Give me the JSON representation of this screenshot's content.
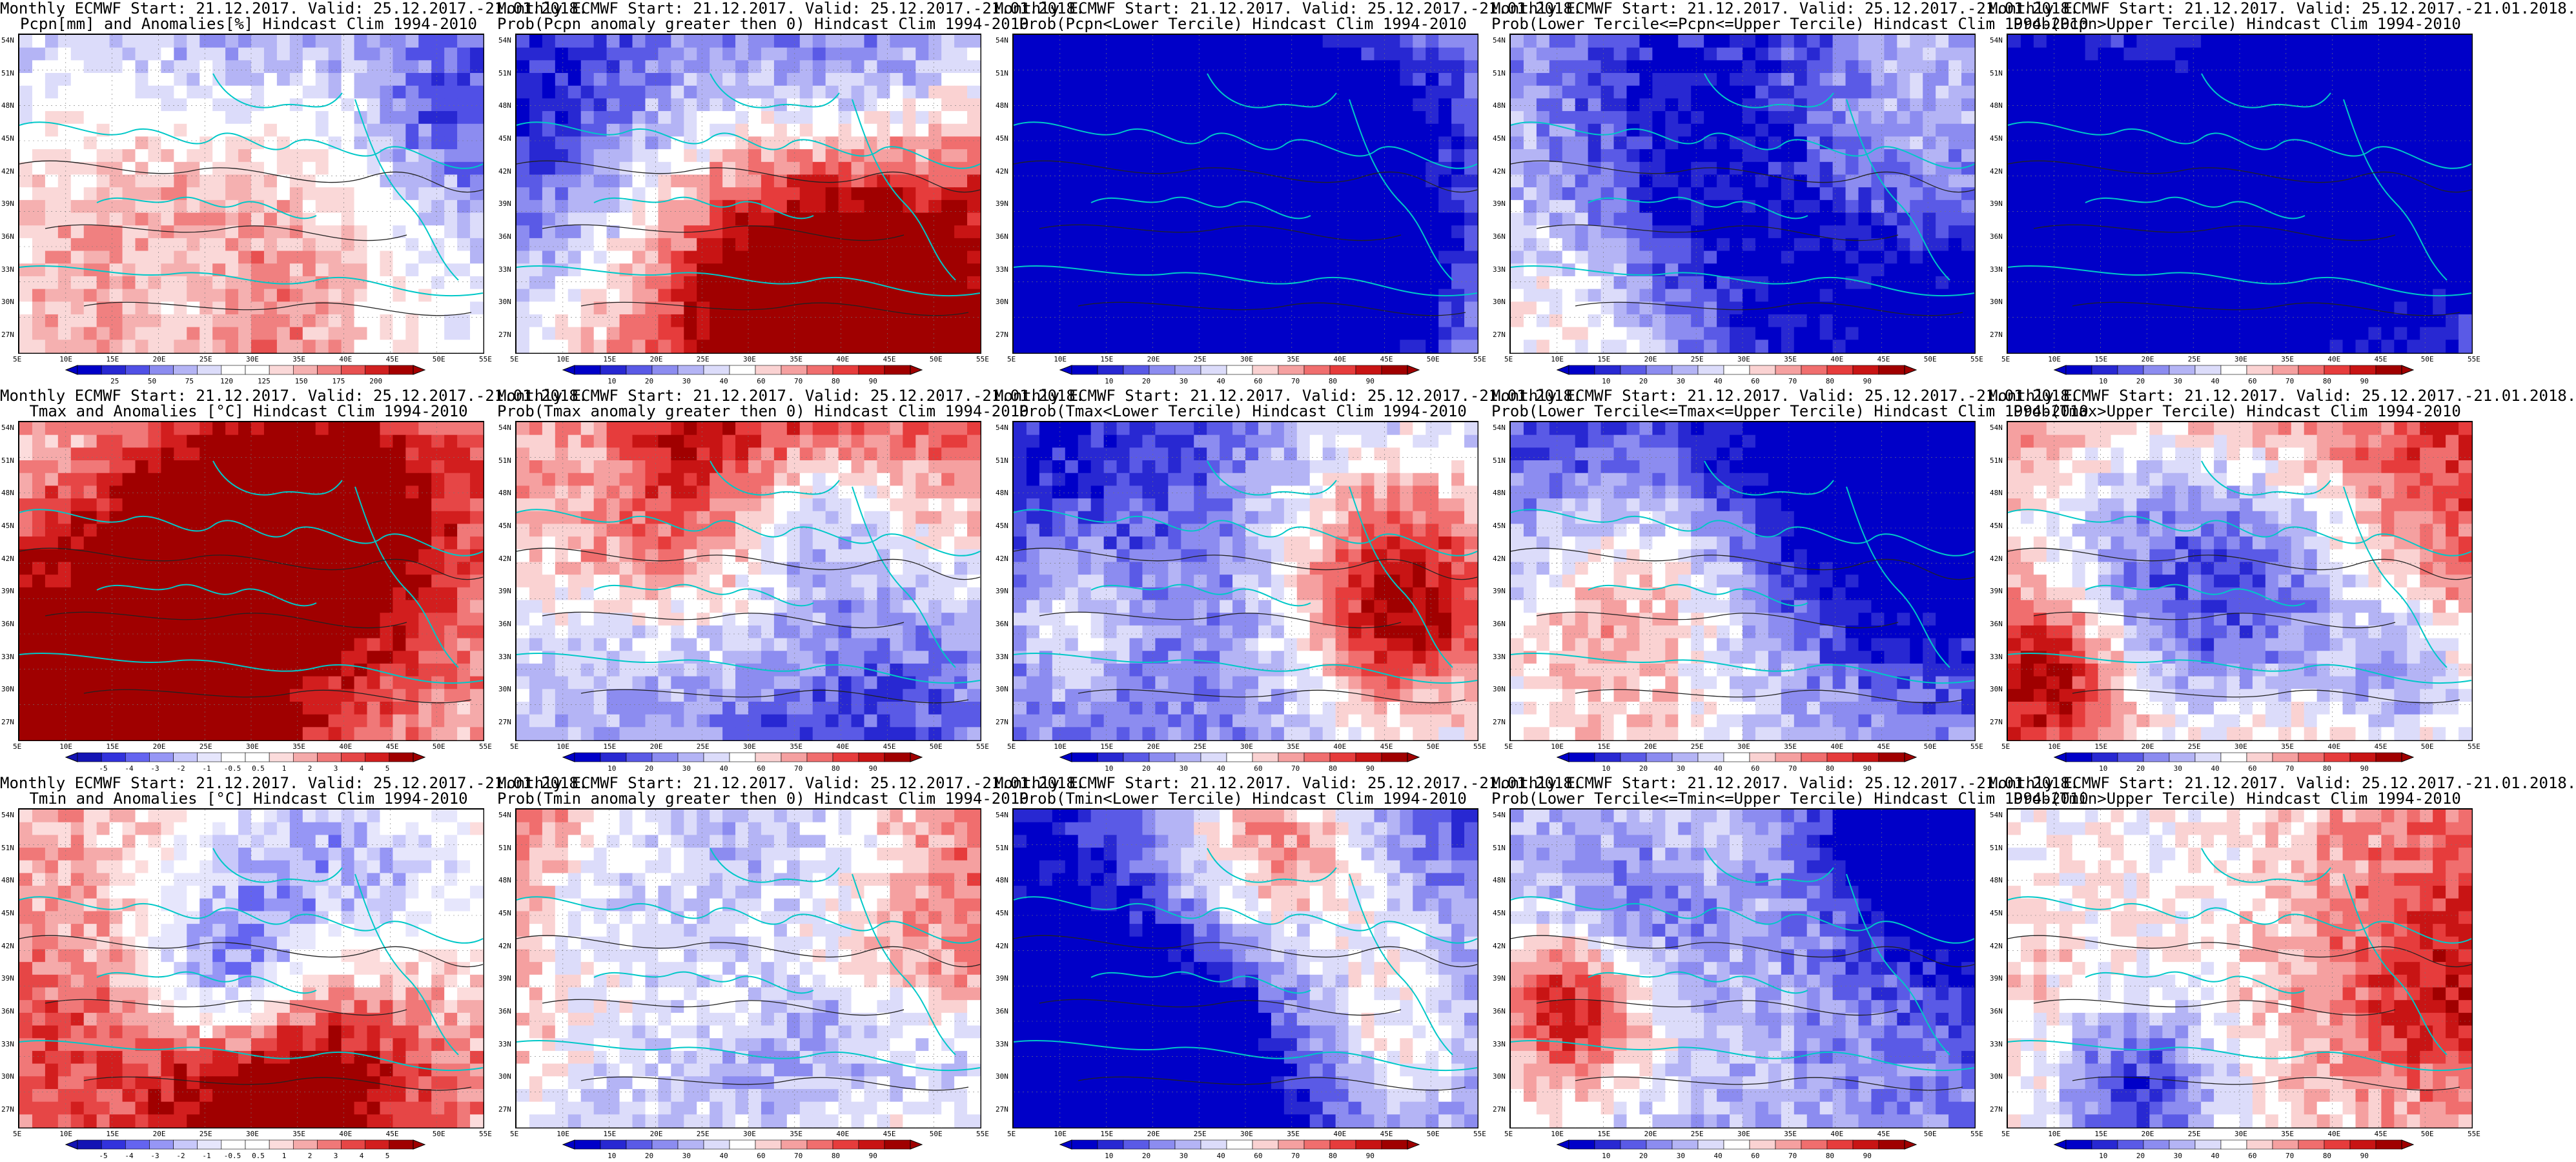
{
  "lat_labels": [
    "54N",
    "51N",
    "48N",
    "45N",
    "42N",
    "39N",
    "36N",
    "33N",
    "30N",
    "27N"
  ],
  "lon_labels": [
    "5E",
    "10E",
    "15E",
    "20E",
    "25E",
    "30E",
    "35E",
    "40E",
    "45E",
    "50E",
    "55E"
  ],
  "palettes": {
    "anom_prec": [
      "#a50000",
      "#d02020",
      "#e85050",
      "#f08080",
      "#f5b0b0",
      "#fad8d8",
      "#ffffff",
      "#ffffff",
      "#dcdcfa",
      "#b4b4f5",
      "#8c8cf0",
      "#5050e6",
      "#2828d2",
      "#0000c8"
    ],
    "anom_temp": [
      "#1414b4",
      "#3232dc",
      "#6464f0",
      "#9696f5",
      "#c8c8fa",
      "#e6e6fc",
      "#ffffff",
      "#ffffff",
      "#fcdcdc",
      "#f5aaaa",
      "#f07878",
      "#e64646",
      "#d21e1e",
      "#a00000"
    ],
    "prob": [
      "#0000c8",
      "#2828d2",
      "#5a5ae6",
      "#8c8cf0",
      "#b4b4f5",
      "#dcdcfa",
      "#ffffff",
      "#fad2d2",
      "#f5a0a0",
      "#f06e6e",
      "#e63c3c",
      "#c81414",
      "#a00000"
    ]
  },
  "panels": [
    {
      "line1": "Monthly ECMWF Start: 21.12.2017. Valid: 25.12.2017.-21.01.2018.",
      "line2": "Pcpn[mm] and Anomalies[%] Hindcast Clim 1994-2010",
      "palette": "anom_prec",
      "colorbar_labels": [
        "25",
        "50",
        "75",
        "120",
        "125",
        "150",
        "175",
        "200"
      ],
      "seed": 11,
      "bias": 0.35
    },
    {
      "line1": "Monthly ECMWF Start: 21.12.2017. Valid: 25.12.2017.-21.01.2018.",
      "line2": "Prob(Pcpn anomaly greater then 0) Hindcast Clim 1994-2010",
      "palette": "prob",
      "colorbar_labels": [
        "10",
        "20",
        "30",
        "40",
        "60",
        "70",
        "80",
        "90"
      ],
      "seed": 12,
      "bias": 0.45
    },
    {
      "line1": "Monthly ECMWF Start: 21.12.2017. Valid: 25.12.2017.-21.01.2018.",
      "line2": "Prob(Pcpn<Lower Tercile) Hindcast Clim 1994-2010",
      "palette": "prob",
      "colorbar_labels": [
        "10",
        "20",
        "30",
        "40",
        "60",
        "70",
        "80",
        "90"
      ],
      "seed": 13,
      "bias": 0.4
    },
    {
      "line1": "Monthly ECMWF Start: 21.12.2017. Valid: 25.12.2017.-21.01.2018.",
      "line2": "Prob(Lower Tercile<=Pcpn<=Upper Tercile) Hindcast Clim 1994-2010",
      "palette": "prob",
      "colorbar_labels": [
        "10",
        "20",
        "30",
        "40",
        "60",
        "70",
        "80",
        "90"
      ],
      "seed": 14,
      "bias": 0.42
    },
    {
      "line1": "Monthly ECMWF Start: 21.12.2017. Valid: 25.12.2017.-21.01.2018.",
      "line2": "Prob(Pcpn>Upper Tercile) Hindcast Clim 1994-2010",
      "palette": "prob",
      "colorbar_labels": [
        "10",
        "20",
        "30",
        "40",
        "60",
        "70",
        "80",
        "90"
      ],
      "seed": 15,
      "bias": 0.38
    },
    {
      "line1": "Monthly ECMWF Start: 21.12.2017. Valid: 25.12.2017.-21.01.2018.",
      "line2": "Tmax and Anomalies [°C] Hindcast Clim 1994-2010",
      "palette": "anom_temp",
      "colorbar_labels": [
        "-5",
        "-4",
        "-3",
        "-2",
        "-1",
        "-0.5",
        "0.5",
        "1",
        "2",
        "3",
        "4",
        "5"
      ],
      "seed": 21,
      "bias": 0.68
    },
    {
      "line1": "Monthly ECMWF Start: 21.12.2017. Valid: 25.12.2017.-21.01.2018.",
      "line2": "Prob(Tmax anomaly greater then 0) Hindcast Clim 1994-2010",
      "palette": "prob",
      "colorbar_labels": [
        "10",
        "20",
        "30",
        "40",
        "60",
        "70",
        "80",
        "90"
      ],
      "seed": 22,
      "bias": 0.75
    },
    {
      "line1": "Monthly ECMWF Start: 21.12.2017. Valid: 25.12.2017.-21.01.2018.",
      "line2": "Prob(Tmax<Lower Tercile) Hindcast Clim 1994-2010",
      "palette": "prob",
      "colorbar_labels": [
        "10",
        "20",
        "30",
        "40",
        "60",
        "70",
        "80",
        "90"
      ],
      "seed": 23,
      "bias": 0.1
    },
    {
      "line1": "Monthly ECMWF Start: 21.12.2017. Valid: 25.12.2017.-21.01.2018.",
      "line2": "Prob(Lower Tercile<=Tmax<=Upper Tercile) Hindcast Clim 1994-2010",
      "palette": "prob",
      "colorbar_labels": [
        "10",
        "20",
        "30",
        "40",
        "60",
        "70",
        "80",
        "90"
      ],
      "seed": 24,
      "bias": 0.2
    },
    {
      "line1": "Monthly ECMWF Start: 21.12.2017. Valid: 25.12.2017.-21.01.2018.",
      "line2": "Prob(Tmax>Upper Tercile) Hindcast Clim 1994-2010",
      "palette": "prob",
      "colorbar_labels": [
        "10",
        "20",
        "30",
        "40",
        "60",
        "70",
        "80",
        "90"
      ],
      "seed": 25,
      "bias": 0.72
    },
    {
      "line1": "Monthly ECMWF Start: 21.12.2017. Valid: 25.12.2017.-21.01.2018.",
      "line2": "Tmin and Anomalies [°C] Hindcast Clim 1994-2010",
      "palette": "anom_temp",
      "colorbar_labels": [
        "-5",
        "-4",
        "-3",
        "-2",
        "-1",
        "-0.5",
        "0.5",
        "1",
        "2",
        "3",
        "4",
        "5"
      ],
      "seed": 31,
      "bias": 0.66
    },
    {
      "line1": "Monthly ECMWF Start: 21.12.2017. Valid: 25.12.2017.-21.01.2018.",
      "line2": "Prob(Tmin anomaly greater then 0) Hindcast Clim 1994-2010",
      "palette": "prob",
      "colorbar_labels": [
        "10",
        "20",
        "30",
        "40",
        "60",
        "70",
        "80",
        "90"
      ],
      "seed": 32,
      "bias": 0.76
    },
    {
      "line1": "Monthly ECMWF Start: 21.12.2017. Valid: 25.12.2017.-21.01.2018.",
      "line2": "Prob(Tmin<Lower Tercile) Hindcast Clim 1994-2010",
      "palette": "prob",
      "colorbar_labels": [
        "10",
        "20",
        "30",
        "40",
        "60",
        "70",
        "80",
        "90"
      ],
      "seed": 33,
      "bias": 0.08
    },
    {
      "line1": "Monthly ECMWF Start: 21.12.2017. Valid: 25.12.2017.-21.01.2018.",
      "line2": "Prob(Lower Tercile<=Tmin<=Upper Tercile) Hindcast Clim 1994-2010",
      "palette": "prob",
      "colorbar_labels": [
        "10",
        "20",
        "30",
        "40",
        "60",
        "70",
        "80",
        "90"
      ],
      "seed": 34,
      "bias": 0.18
    },
    {
      "line1": "Monthly ECMWF Start: 21.12.2017. Valid: 25.12.2017.-21.01.2018.",
      "line2": "Prob(Tmin>Upper Tercile) Hindcast Clim 1994-2010",
      "palette": "prob",
      "colorbar_labels": [
        "10",
        "20",
        "30",
        "40",
        "60",
        "70",
        "80",
        "90"
      ],
      "seed": 35,
      "bias": 0.62
    }
  ]
}
